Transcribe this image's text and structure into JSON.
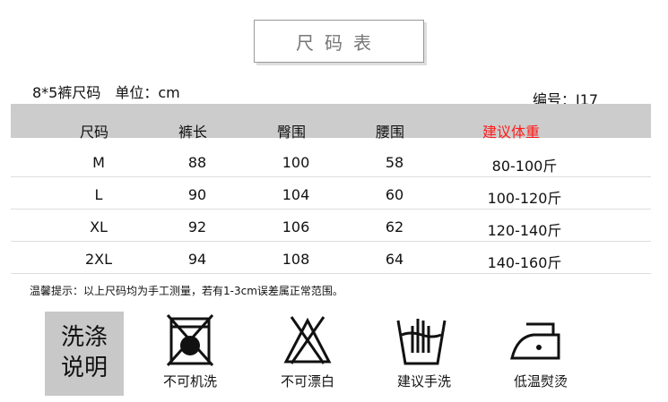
{
  "title": "尺码表",
  "subtitle": "8*5裤尺码　单位：cm",
  "code": "编号：J17",
  "headers": [
    "尺码",
    "裤长",
    "臀围",
    "腰围",
    "建议体重"
  ],
  "header_highlight_color": "#ff1a1a",
  "rows": [
    [
      "M",
      "88",
      "100",
      "58",
      "80-100斤"
    ],
    [
      "L",
      "90",
      "104",
      "60",
      "100-120斤"
    ],
    [
      "XL",
      "92",
      "106",
      "62",
      "120-140斤"
    ],
    [
      "2XL",
      "94",
      "108",
      "64",
      "140-160斤"
    ]
  ],
  "note": "温馨提示：以上尺码均为手工测量，若有1-3cm误差属正常范围。",
  "care": {
    "title_line1": "洗涤",
    "title_line2": "说明",
    "items": [
      "不可机洗",
      "不可漂白",
      "建议手洗",
      "低温熨烫"
    ]
  }
}
